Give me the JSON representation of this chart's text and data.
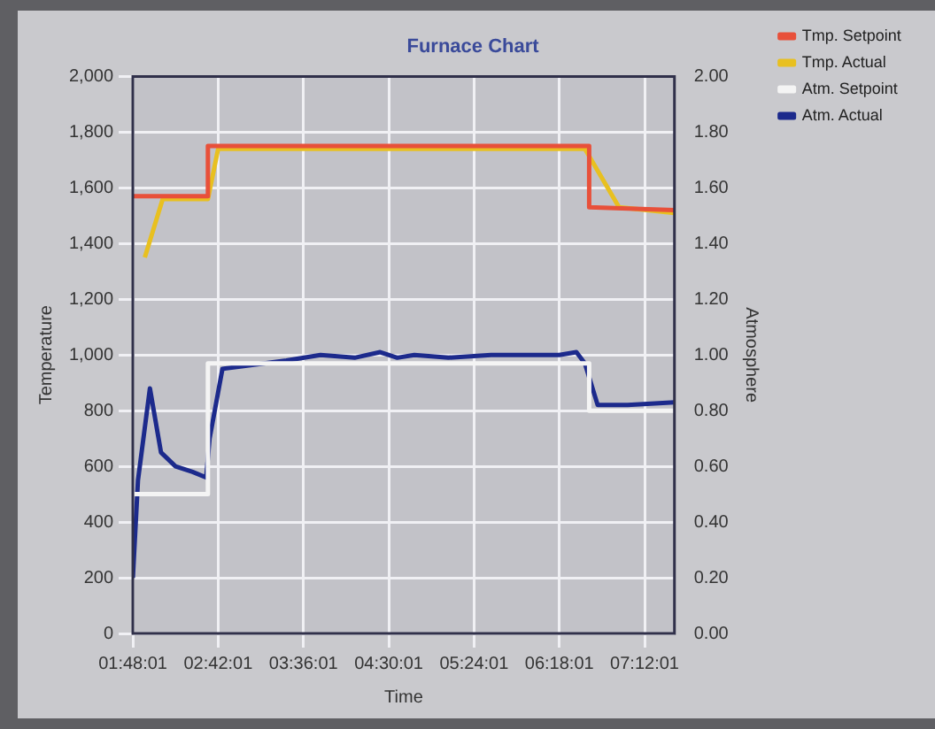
{
  "chart_data": {
    "type": "line",
    "title": "Furnace Chart",
    "xlabel": "Time",
    "ylabel": "Temperature",
    "y2label": "Atmosphere",
    "xlim": [
      1.8,
      7.515
    ],
    "xticks": [
      {
        "value": 1.8003,
        "label": "01:48:01"
      },
      {
        "value": 2.7003,
        "label": "02:42:01"
      },
      {
        "value": 3.6003,
        "label": "03:36:01"
      },
      {
        "value": 4.5003,
        "label": "04:30:01"
      },
      {
        "value": 5.4003,
        "label": "05:24:01"
      },
      {
        "value": 6.3003,
        "label": "06:18:01"
      },
      {
        "value": 7.2003,
        "label": "07:12:01"
      }
    ],
    "ylim": [
      0,
      2000
    ],
    "yticks": [
      {
        "value": 0,
        "label": "0"
      },
      {
        "value": 200,
        "label": "200"
      },
      {
        "value": 400,
        "label": "400"
      },
      {
        "value": 600,
        "label": "600"
      },
      {
        "value": 800,
        "label": "800"
      },
      {
        "value": 1000,
        "label": "1,000"
      },
      {
        "value": 1200,
        "label": "1,200"
      },
      {
        "value": 1400,
        "label": "1,400"
      },
      {
        "value": 1600,
        "label": "1,600"
      },
      {
        "value": 1800,
        "label": "1,800"
      },
      {
        "value": 2000,
        "label": "2,000"
      }
    ],
    "y2lim": [
      0,
      2
    ],
    "y2ticks": [
      {
        "value": 0,
        "label": "0.00"
      },
      {
        "value": 0.2,
        "label": "0.20"
      },
      {
        "value": 0.4,
        "label": "0.40"
      },
      {
        "value": 0.6,
        "label": "0.60"
      },
      {
        "value": 0.8,
        "label": "0.80"
      },
      {
        "value": 1,
        "label": "1.00"
      },
      {
        "value": 1.2,
        "label": "1.20"
      },
      {
        "value": 1.4,
        "label": "1.40"
      },
      {
        "value": 1.6,
        "label": "1.60"
      },
      {
        "value": 1.8,
        "label": "1.80"
      },
      {
        "value": 2,
        "label": "2.00"
      }
    ],
    "grid": true,
    "legend": "top right",
    "marker": "none",
    "series": [
      {
        "name": "Tmp. Setpoint",
        "color": "#e8503a",
        "x": [
          1.8,
          2.592,
          2.592,
          6.615,
          6.615,
          7.515
        ],
        "values": [
          1570,
          1570,
          1750,
          1750,
          1530,
          1520
        ]
      },
      {
        "name": "Tmp. Actual",
        "color": "#e8c020",
        "x": [
          1.926,
          2.115,
          2.592,
          2.7,
          6.57,
          6.93,
          7.515
        ],
        "values": [
          1350,
          1560,
          1560,
          1740,
          1740,
          1530,
          1510
        ]
      },
      {
        "name": "Atm. Setpoint",
        "color": "#f4f4f4",
        "axis": "y2",
        "x": [
          1.8,
          2.592,
          2.592,
          6.615,
          6.615,
          7.515
        ],
        "values": [
          0.5,
          0.5,
          0.97,
          0.97,
          0.8,
          0.8
        ]
      },
      {
        "name": "Atm. Actual",
        "color": "#1c2a8c",
        "axis": "y2",
        "x": [
          1.8,
          1.854,
          1.98,
          2.097,
          2.25,
          2.43,
          2.574,
          2.61,
          2.745,
          2.97,
          3.42,
          3.78,
          4.14,
          4.41,
          4.59,
          4.77,
          5.13,
          5.58,
          5.94,
          6.3,
          6.48,
          6.57,
          6.705,
          7.02,
          7.515
        ],
        "values": [
          0.2,
          0.55,
          0.88,
          0.65,
          0.6,
          0.58,
          0.56,
          0.7,
          0.95,
          0.96,
          0.98,
          1.0,
          0.99,
          1.01,
          0.99,
          1.0,
          0.99,
          1.0,
          1.0,
          1.0,
          1.01,
          0.97,
          0.82,
          0.82,
          0.83
        ]
      }
    ]
  }
}
